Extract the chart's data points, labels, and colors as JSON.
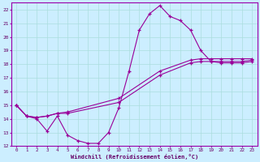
{
  "xlabel": "Windchill (Refroidissement éolien,°C)",
  "background_color": "#cceeff",
  "grid_color": "#aadddd",
  "line_color": "#990099",
  "xlim": [
    -0.5,
    23.5
  ],
  "ylim": [
    12,
    22.5
  ],
  "xticks": [
    0,
    1,
    2,
    3,
    4,
    5,
    6,
    7,
    8,
    9,
    10,
    11,
    12,
    13,
    14,
    15,
    16,
    17,
    18,
    19,
    20,
    21,
    22,
    23
  ],
  "yticks": [
    12,
    13,
    14,
    15,
    16,
    17,
    18,
    19,
    20,
    21,
    22
  ],
  "series1_x": [
    0,
    1,
    2,
    3,
    4,
    5,
    6,
    7,
    8,
    9,
    10,
    11,
    12,
    13,
    14,
    15,
    16,
    17,
    18,
    19,
    20,
    21,
    22,
    23
  ],
  "series1_y": [
    15.0,
    14.2,
    14.0,
    13.1,
    14.2,
    12.8,
    12.4,
    12.2,
    12.2,
    13.0,
    14.8,
    17.5,
    20.5,
    21.7,
    22.3,
    21.5,
    21.2,
    20.5,
    19.0,
    18.2,
    18.1,
    18.1,
    18.1,
    18.2
  ],
  "series2_x": [
    0,
    1,
    2,
    3,
    4,
    5,
    10,
    14,
    17,
    18,
    19,
    20,
    21,
    22,
    23
  ],
  "series2_y": [
    15.0,
    14.2,
    14.1,
    14.2,
    14.4,
    14.4,
    15.2,
    17.2,
    18.1,
    18.2,
    18.2,
    18.2,
    18.2,
    18.2,
    18.3
  ],
  "series3_x": [
    0,
    1,
    2,
    3,
    4,
    5,
    10,
    14,
    17,
    18,
    19,
    20,
    21,
    22,
    23
  ],
  "series3_y": [
    15.0,
    14.2,
    14.1,
    14.2,
    14.4,
    14.5,
    15.5,
    17.5,
    18.3,
    18.4,
    18.4,
    18.4,
    18.4,
    18.4,
    18.4
  ]
}
